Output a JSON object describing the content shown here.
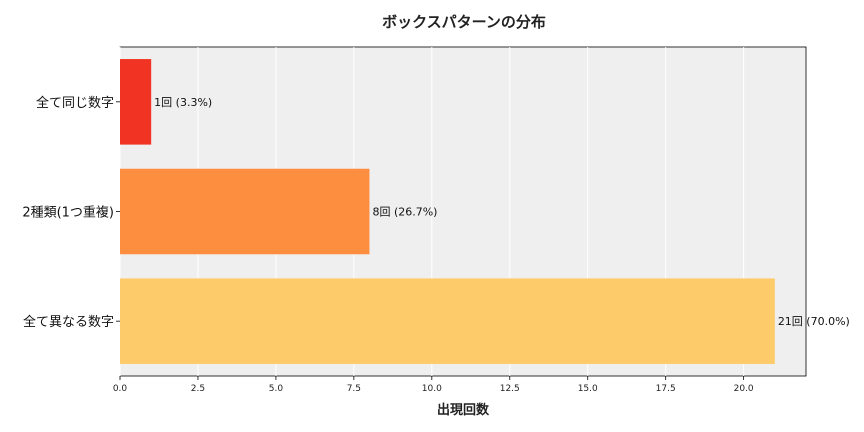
{
  "chart_data": {
    "type": "bar",
    "orientation": "horizontal",
    "title": "ボックスパターンの分布",
    "xlabel": "出現回数",
    "ylabel": "",
    "xlim": [
      0,
      22
    ],
    "grid": true,
    "categories": [
      "全て同じ数字",
      "2種類(1つ重複)",
      "全て異なる数字"
    ],
    "values": [
      1,
      8,
      21
    ],
    "data_labels": [
      "1回 (3.3%)",
      "8回 (26.7%)",
      "21回 (70.0%)"
    ],
    "colors": [
      "#f03323",
      "#fd8e3f",
      "#fecb6a"
    ],
    "x_ticks": [
      "0.0",
      "2.5",
      "5.0",
      "7.5",
      "10.0",
      "12.5",
      "15.0",
      "17.5",
      "20.0"
    ],
    "background_color": "#efefef"
  }
}
